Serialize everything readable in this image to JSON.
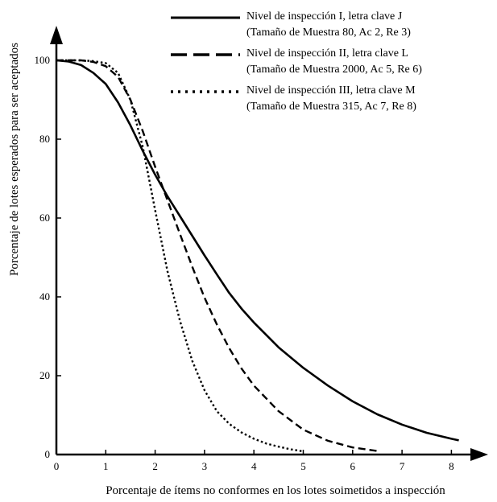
{
  "chart_data": {
    "type": "line",
    "xlabel": "Porcentaje de ítems no conformes en los lotes soimetidos a inspección",
    "ylabel": "Porcentaje de lotes  esperados para ser aceptados",
    "xlim": [
      0,
      8.5
    ],
    "ylim": [
      0,
      105
    ],
    "x_ticks": [
      0,
      1,
      2,
      3,
      4,
      5,
      6,
      7,
      8
    ],
    "x_tick_labels": [
      "0",
      "1",
      "2",
      "3",
      "4",
      "5",
      "6",
      "7",
      "8"
    ],
    "y_ticks": [
      0,
      20,
      40,
      60,
      80,
      100
    ],
    "y_tick_labels": [
      "0",
      "20",
      "40",
      "60",
      "80",
      "100"
    ],
    "grid": false,
    "legend_position": "top-right",
    "series": [
      {
        "name": "Nivel de inspección I, letra clave J",
        "detail": "(Tamaño de Muestra 80, Ac 2, Re 3)",
        "style": "solid",
        "x": [
          0,
          0.25,
          0.5,
          0.75,
          1.0,
          1.25,
          1.5,
          1.75,
          2.0,
          2.25,
          2.5,
          2.75,
          3.0,
          3.25,
          3.5,
          3.75,
          4.0,
          4.5,
          5.0,
          5.5,
          6.0,
          6.5,
          7.0,
          7.5,
          8.0,
          8.15
        ],
        "y": [
          100,
          99.7,
          98.8,
          96.8,
          94.0,
          89.3,
          83.5,
          77.0,
          71.0,
          65.5,
          60.5,
          55.5,
          50.5,
          45.7,
          41.0,
          37.0,
          33.5,
          27.2,
          22.0,
          17.5,
          13.5,
          10.2,
          7.6,
          5.5,
          4.0,
          3.6
        ]
      },
      {
        "name": "Nivel de inspección II, letra clave L",
        "detail": "(Tamaño de Muestra 2000, Ac 5, Re 6)",
        "style": "dashed",
        "x": [
          0,
          0.25,
          0.5,
          0.75,
          1.0,
          1.25,
          1.5,
          1.75,
          2.0,
          2.25,
          2.5,
          2.75,
          3.0,
          3.25,
          3.5,
          3.75,
          4.0,
          4.5,
          5.0,
          5.5,
          6.0,
          6.5
        ],
        "y": [
          100,
          100,
          100,
          99.6,
          98.5,
          95.8,
          90.0,
          82.0,
          73.0,
          64.5,
          56.0,
          47.7,
          39.8,
          33.0,
          27.0,
          21.8,
          17.5,
          11.0,
          6.3,
          3.5,
          1.8,
          0.9
        ]
      },
      {
        "name": "Nivel de inspección III, letra clave M",
        "detail": "(Tamaño de Muestra 315, Ac 7, Re 8)",
        "style": "dotted",
        "x": [
          0,
          0.25,
          0.5,
          0.75,
          1.0,
          1.25,
          1.5,
          1.75,
          2.0,
          2.25,
          2.5,
          2.75,
          3.0,
          3.25,
          3.5,
          3.75,
          4.0,
          4.25,
          4.5,
          4.75,
          5.0
        ],
        "y": [
          100,
          100,
          100,
          99.8,
          99.3,
          96.8,
          90.0,
          78.0,
          62.0,
          46.5,
          34.0,
          23.8,
          16.3,
          11.0,
          7.8,
          5.6,
          4.0,
          2.8,
          2.0,
          1.3,
          0.8
        ]
      }
    ]
  }
}
